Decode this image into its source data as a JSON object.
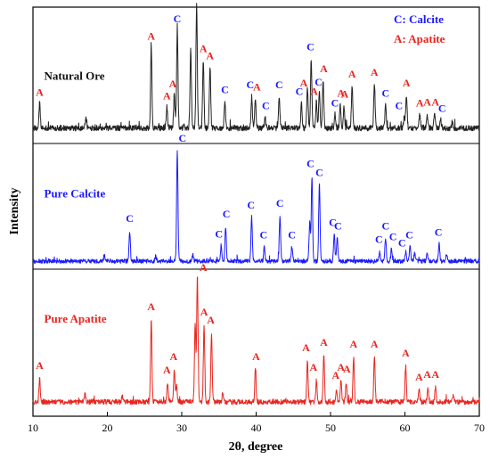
{
  "chart_data": {
    "type": "line",
    "title": "",
    "xlabel": "2θ, degree",
    "ylabel": "Intensity",
    "xlim": [
      10,
      70
    ],
    "x_ticks": [
      10,
      20,
      30,
      40,
      50,
      60,
      70
    ],
    "x_tick_labels": [
      "10",
      "20",
      "30",
      "40",
      "50",
      "60",
      "70"
    ],
    "grid": false,
    "legend": {
      "placement": "top-right",
      "entries": [
        {
          "text": "C: Calcite",
          "color": "#1a1aff"
        },
        {
          "text": "A: Apatite",
          "color": "#e8251e"
        }
      ]
    },
    "series": [
      {
        "name": "Natural Ore",
        "color": "#222222",
        "label_color": "#111111",
        "baseline": 0.32,
        "noise": 0.16,
        "label_at": [
          11.5,
          0.78
        ],
        "peaks": [
          [
            10.9,
            1.4
          ],
          [
            17.1,
            0.5
          ],
          [
            25.9,
            4.6
          ],
          [
            28.0,
            1.2
          ],
          [
            29.0,
            1.9
          ],
          [
            29.4,
            5.6
          ],
          [
            31.2,
            4.5
          ],
          [
            32.0,
            7.0
          ],
          [
            32.9,
            3.9
          ],
          [
            33.8,
            3.5
          ],
          [
            35.8,
            1.5
          ],
          [
            39.4,
            1.8
          ],
          [
            39.9,
            1.6
          ],
          [
            41.2,
            0.6
          ],
          [
            43.1,
            1.8
          ],
          [
            46.1,
            1.4
          ],
          [
            46.9,
            2.3
          ],
          [
            47.4,
            4.0
          ],
          [
            48.1,
            1.5
          ],
          [
            48.5,
            2.0
          ],
          [
            49.0,
            2.7
          ],
          [
            50.6,
            0.8
          ],
          [
            51.3,
            1.3
          ],
          [
            51.8,
            1.2
          ],
          [
            52.9,
            2.4
          ],
          [
            55.9,
            2.5
          ],
          [
            57.4,
            1.3
          ],
          [
            59.9,
            0.6
          ],
          [
            60.2,
            1.9
          ],
          [
            62.0,
            0.8
          ],
          [
            63.0,
            0.8
          ],
          [
            64.0,
            0.9
          ],
          [
            64.8,
            0.5
          ],
          [
            66.4,
            0.3
          ]
        ],
        "labels": [
          {
            "x": 10.9,
            "y": 2.15,
            "t": "A"
          },
          {
            "x": 25.9,
            "y": 5.35,
            "t": "A"
          },
          {
            "x": 28.0,
            "y": 1.95,
            "t": "A"
          },
          {
            "x": 28.8,
            "y": 2.65,
            "t": "A"
          },
          {
            "x": 29.4,
            "y": 6.35,
            "t": "C"
          },
          {
            "x": 32.9,
            "y": 4.65,
            "t": "A"
          },
          {
            "x": 33.8,
            "y": 4.25,
            "t": "A"
          },
          {
            "x": 35.8,
            "y": 2.3,
            "t": "C"
          },
          {
            "x": 39.2,
            "y": 2.6,
            "t": "C"
          },
          {
            "x": 40.1,
            "y": 2.45,
            "t": "A"
          },
          {
            "x": 41.3,
            "y": 1.4,
            "t": "C"
          },
          {
            "x": 43.1,
            "y": 2.6,
            "t": "C"
          },
          {
            "x": 45.8,
            "y": 2.2,
            "t": "C"
          },
          {
            "x": 46.4,
            "y": 2.7,
            "t": "A"
          },
          {
            "x": 47.3,
            "y": 4.75,
            "t": "C"
          },
          {
            "x": 47.8,
            "y": 2.2,
            "t": "A"
          },
          {
            "x": 48.4,
            "y": 2.75,
            "t": "C"
          },
          {
            "x": 49.1,
            "y": 3.5,
            "t": "A"
          },
          {
            "x": 50.6,
            "y": 1.55,
            "t": "C"
          },
          {
            "x": 51.4,
            "y": 2.1,
            "t": "A"
          },
          {
            "x": 51.9,
            "y": 2.05,
            "t": "A"
          },
          {
            "x": 52.9,
            "y": 3.2,
            "t": "A"
          },
          {
            "x": 55.9,
            "y": 3.3,
            "t": "A"
          },
          {
            "x": 57.4,
            "y": 2.1,
            "t": "C"
          },
          {
            "x": 59.2,
            "y": 1.4,
            "t": "C"
          },
          {
            "x": 60.2,
            "y": 2.7,
            "t": "A"
          },
          {
            "x": 62.0,
            "y": 1.55,
            "t": "A"
          },
          {
            "x": 63.0,
            "y": 1.6,
            "t": "A"
          },
          {
            "x": 64.1,
            "y": 1.6,
            "t": "A"
          },
          {
            "x": 65.0,
            "y": 1.25,
            "t": "C"
          }
        ]
      },
      {
        "name": "Pure Calcite",
        "color": "#1a1aff",
        "label_color": "#1a1aff",
        "baseline": 0.25,
        "noise": 0.12,
        "label_at": [
          11.5,
          1.6
        ],
        "peaks": [
          [
            19.6,
            0.35
          ],
          [
            23.0,
            1.75
          ],
          [
            26.5,
            0.3
          ],
          [
            29.4,
            6.3
          ],
          [
            31.5,
            0.4
          ],
          [
            35.3,
            0.9
          ],
          [
            35.9,
            2.0
          ],
          [
            39.4,
            2.5
          ],
          [
            41.1,
            0.8
          ],
          [
            43.2,
            2.6
          ],
          [
            44.8,
            0.8
          ],
          [
            47.2,
            2.2
          ],
          [
            47.5,
            4.8
          ],
          [
            48.5,
            4.4
          ],
          [
            50.5,
            1.5
          ],
          [
            50.9,
            1.3
          ],
          [
            56.6,
            0.5
          ],
          [
            57.4,
            1.3
          ],
          [
            58.2,
            0.7
          ],
          [
            60.1,
            0.55
          ],
          [
            60.7,
            0.8
          ],
          [
            61.3,
            0.5
          ],
          [
            63.0,
            0.4
          ],
          [
            64.6,
            0.95
          ],
          [
            65.6,
            0.4
          ]
        ],
        "labels": [
          {
            "x": 23.0,
            "y": 2.5,
            "t": "C"
          },
          {
            "x": 30.1,
            "y": 7.05,
            "t": "C"
          },
          {
            "x": 35.0,
            "y": 1.6,
            "t": "C"
          },
          {
            "x": 36.0,
            "y": 2.75,
            "t": "C"
          },
          {
            "x": 39.3,
            "y": 3.25,
            "t": "C"
          },
          {
            "x": 41.0,
            "y": 1.55,
            "t": "C"
          },
          {
            "x": 43.2,
            "y": 3.35,
            "t": "C"
          },
          {
            "x": 44.8,
            "y": 1.55,
            "t": "C"
          },
          {
            "x": 47.3,
            "y": 5.6,
            "t": "C"
          },
          {
            "x": 48.5,
            "y": 5.1,
            "t": "C"
          },
          {
            "x": 50.3,
            "y": 2.25,
            "t": "C"
          },
          {
            "x": 51.0,
            "y": 2.05,
            "t": "C"
          },
          {
            "x": 56.5,
            "y": 1.3,
            "t": "C"
          },
          {
            "x": 57.4,
            "y": 2.05,
            "t": "C"
          },
          {
            "x": 58.4,
            "y": 1.45,
            "t": "C"
          },
          {
            "x": 59.6,
            "y": 1.1,
            "t": "C"
          },
          {
            "x": 60.6,
            "y": 1.55,
            "t": "C"
          },
          {
            "x": 64.5,
            "y": 1.7,
            "t": "C"
          }
        ]
      },
      {
        "name": "Pure Apatite",
        "color": "#e8251e",
        "label_color": "#e8251e",
        "baseline": 0.2,
        "noise": 0.14,
        "label_at": [
          11.5,
          2.4
        ],
        "peaks": [
          [
            10.9,
            1.3
          ],
          [
            17.0,
            0.45
          ],
          [
            22.0,
            0.3
          ],
          [
            25.9,
            4.6
          ],
          [
            28.1,
            1.0
          ],
          [
            29.0,
            1.8
          ],
          [
            29.3,
            1.0
          ],
          [
            31.8,
            4.5
          ],
          [
            32.1,
            7.2
          ],
          [
            33.0,
            4.3
          ],
          [
            34.0,
            3.8
          ],
          [
            35.5,
            0.5
          ],
          [
            39.9,
            1.8
          ],
          [
            46.9,
            2.3
          ],
          [
            48.1,
            1.2
          ],
          [
            49.1,
            2.6
          ],
          [
            50.8,
            0.7
          ],
          [
            51.4,
            1.2
          ],
          [
            52.1,
            1.1
          ],
          [
            53.1,
            2.5
          ],
          [
            55.9,
            2.5
          ],
          [
            60.1,
            2.0
          ],
          [
            61.9,
            0.7
          ],
          [
            63.1,
            0.8
          ],
          [
            64.1,
            0.8
          ],
          [
            66.5,
            0.3
          ]
        ],
        "labels": [
          {
            "x": 10.9,
            "y": 2.05,
            "t": "A"
          },
          {
            "x": 25.9,
            "y": 5.35,
            "t": "A"
          },
          {
            "x": 28.0,
            "y": 1.8,
            "t": "A"
          },
          {
            "x": 28.9,
            "y": 2.55,
            "t": "A"
          },
          {
            "x": 32.9,
            "y": 7.55,
            "t": "A"
          },
          {
            "x": 33.0,
            "y": 5.05,
            "t": "A"
          },
          {
            "x": 33.9,
            "y": 4.6,
            "t": "A"
          },
          {
            "x": 40.0,
            "y": 2.55,
            "t": "A"
          },
          {
            "x": 46.7,
            "y": 3.05,
            "t": "A"
          },
          {
            "x": 47.7,
            "y": 1.95,
            "t": "A"
          },
          {
            "x": 49.1,
            "y": 3.35,
            "t": "A"
          },
          {
            "x": 50.7,
            "y": 1.5,
            "t": "A"
          },
          {
            "x": 51.4,
            "y": 1.95,
            "t": "A"
          },
          {
            "x": 52.2,
            "y": 1.85,
            "t": "A"
          },
          {
            "x": 53.1,
            "y": 3.25,
            "t": "A"
          },
          {
            "x": 55.9,
            "y": 3.25,
            "t": "A"
          },
          {
            "x": 60.1,
            "y": 2.75,
            "t": "A"
          },
          {
            "x": 61.9,
            "y": 1.4,
            "t": "A"
          },
          {
            "x": 63.0,
            "y": 1.55,
            "t": "A"
          },
          {
            "x": 64.1,
            "y": 1.55,
            "t": "A"
          }
        ]
      }
    ]
  }
}
